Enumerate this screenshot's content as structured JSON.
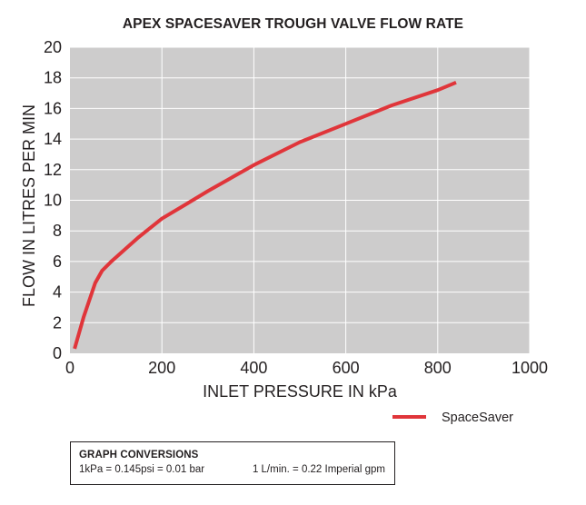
{
  "chart_data": {
    "type": "line",
    "title": "APEX SPACESAVER TROUGH VALVE FLOW RATE",
    "xlabel": "INLET PRESSURE IN kPa",
    "ylabel": "FLOW IN LITRES PER MIN",
    "xlim": [
      0,
      1000
    ],
    "ylim": [
      0,
      20
    ],
    "x_ticks": [
      "0",
      "200",
      "400",
      "600",
      "800",
      "1000"
    ],
    "y_ticks": [
      "0",
      "2",
      "4",
      "6",
      "8",
      "10",
      "12",
      "14",
      "16",
      "18",
      "20"
    ],
    "grid": true,
    "legend_position": "bottom-right",
    "colors": {
      "plot_bg": "#cdcccc",
      "grid": "#ffffff",
      "series": "#e0353a"
    },
    "series": [
      {
        "name": "SpaceSaver",
        "x": [
          10,
          30,
          55,
          70,
          90,
          120,
          150,
          200,
          250,
          300,
          400,
          500,
          600,
          700,
          800,
          840
        ],
        "y": [
          0.3,
          2.4,
          4.6,
          5.4,
          6.0,
          6.8,
          7.6,
          8.8,
          9.7,
          10.6,
          12.3,
          13.8,
          15.0,
          16.2,
          17.2,
          17.7
        ]
      }
    ]
  },
  "conversions": {
    "title": "GRAPH CONVERSIONS",
    "pressure": "1kPa = 0.145psi = 0.01 bar",
    "flow": "1 L/min. = 0.22 Imperial gpm"
  }
}
